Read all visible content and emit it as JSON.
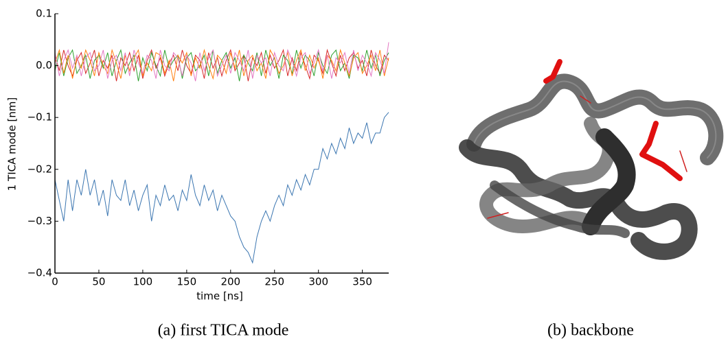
{
  "chart_data": {
    "type": "line",
    "xlabel": "time [ns]",
    "ylabel": "1 TICA mode [nm]",
    "xlim": [
      0,
      380
    ],
    "ylim": [
      -0.4,
      0.1
    ],
    "xticks": [
      0,
      50,
      100,
      150,
      200,
      250,
      300,
      350
    ],
    "yticks": [
      {
        "value": -0.4,
        "label": "−0.4"
      },
      {
        "value": -0.3,
        "label": "−0.3"
      },
      {
        "value": -0.2,
        "label": "−0.2"
      },
      {
        "value": -0.1,
        "label": "−0.1"
      },
      {
        "value": 0,
        "label": "0.0"
      },
      0.1
    ],
    "x": [
      0,
      5,
      10,
      15,
      20,
      25,
      30,
      35,
      40,
      45,
      50,
      55,
      60,
      65,
      70,
      75,
      80,
      85,
      90,
      95,
      100,
      105,
      110,
      115,
      120,
      125,
      130,
      135,
      140,
      145,
      150,
      155,
      160,
      165,
      170,
      175,
      180,
      185,
      190,
      195,
      200,
      205,
      210,
      215,
      220,
      225,
      230,
      235,
      240,
      245,
      250,
      255,
      260,
      265,
      270,
      275,
      280,
      285,
      290,
      295,
      300,
      305,
      310,
      315,
      320,
      325,
      330,
      335,
      340,
      345,
      350,
      355,
      360,
      365,
      370,
      375,
      380
    ],
    "series": [
      {
        "color": "#d62728",
        "values": [
          0.02,
          -0.01,
          0.03,
          0.0,
          -0.02,
          0.01,
          0.025,
          -0.015,
          0.005,
          0.03,
          -0.02,
          0.01,
          -0.005,
          0.02,
          -0.03,
          0.015,
          0.0,
          0.025,
          -0.01,
          0.02,
          -0.025,
          0.01,
          0.03,
          -0.005,
          0.015,
          -0.02,
          0.005,
          0.02,
          -0.01,
          0.03,
          0.0,
          -0.015,
          0.02,
          0.01,
          -0.025,
          0.025,
          -0.005,
          0.015,
          -0.02,
          0.01,
          0.03,
          -0.01,
          0.005,
          0.02,
          -0.03,
          0.015,
          0.0,
          0.025,
          -0.015,
          0.02,
          -0.005,
          0.01,
          0.03,
          -0.02,
          0.015,
          -0.01,
          0.025,
          0.0,
          -0.025,
          0.02,
          0.01,
          -0.015,
          0.03,
          0.005,
          -0.02,
          0.02,
          -0.01,
          0.015,
          0.025,
          -0.005,
          0.01,
          -0.02,
          0.03,
          0.0,
          -0.015,
          0.02,
          0.01
        ]
      },
      {
        "color": "#2ca02c",
        "values": [
          -0.01,
          0.025,
          -0.02,
          0.015,
          0.03,
          -0.015,
          0.0,
          0.02,
          -0.025,
          0.01,
          0.02,
          -0.005,
          0.025,
          -0.02,
          0.01,
          0.03,
          -0.015,
          0.005,
          0.02,
          -0.03,
          0.015,
          -0.01,
          0.025,
          0.0,
          -0.02,
          0.03,
          -0.005,
          0.01,
          0.02,
          -0.025,
          0.015,
          0.025,
          -0.01,
          0.0,
          0.02,
          -0.02,
          0.03,
          -0.015,
          0.01,
          0.025,
          -0.005,
          0.015,
          -0.03,
          0.02,
          0.005,
          -0.01,
          0.025,
          -0.02,
          0.03,
          0.0,
          0.015,
          -0.025,
          0.02,
          0.01,
          -0.015,
          0.03,
          -0.005,
          0.02,
          0.01,
          -0.02,
          0.025,
          0.0,
          -0.015,
          0.02,
          0.03,
          -0.01,
          0.005,
          -0.025,
          0.02,
          0.015,
          -0.01,
          0.03,
          -0.005,
          0.02,
          -0.02,
          0.01,
          0.025
        ]
      },
      {
        "color": "#ff7f0e",
        "values": [
          0.005,
          0.03,
          -0.015,
          0.02,
          -0.025,
          0.015,
          -0.005,
          0.03,
          0.01,
          -0.02,
          0.025,
          0.0,
          -0.015,
          0.03,
          0.005,
          -0.025,
          0.02,
          -0.01,
          0.015,
          0.03,
          -0.02,
          0.005,
          -0.01,
          0.025,
          0.02,
          -0.015,
          0.01,
          -0.03,
          0.02,
          0.005,
          0.025,
          -0.02,
          0.015,
          -0.005,
          0.03,
          0.0,
          -0.025,
          0.02,
          0.01,
          -0.015,
          0.025,
          -0.005,
          0.03,
          -0.02,
          0.01,
          0.02,
          -0.01,
          0.005,
          -0.025,
          0.03,
          0.015,
          -0.015,
          0.0,
          0.025,
          -0.02,
          0.01,
          0.03,
          -0.01,
          0.02,
          -0.005,
          0.015,
          -0.025,
          0.02,
          0.01,
          -0.01,
          0.03,
          0.005,
          -0.02,
          0.015,
          0.025,
          -0.015,
          0.0,
          0.02,
          -0.01,
          0.03,
          -0.02,
          0.015
        ]
      },
      {
        "color": "#e377c2",
        "values": [
          0.025,
          -0.02,
          0.01,
          0.03,
          -0.005,
          0.02,
          -0.02,
          0.015,
          0.025,
          -0.01,
          0.0,
          0.03,
          -0.025,
          0.01,
          0.02,
          -0.01,
          0.025,
          -0.02,
          0.03,
          0.005,
          -0.015,
          0.02,
          0.01,
          -0.025,
          0.03,
          0.0,
          -0.01,
          0.025,
          0.015,
          -0.02,
          0.02,
          0.005,
          -0.03,
          0.025,
          -0.01,
          0.015,
          0.03,
          -0.02,
          0.0,
          0.02,
          -0.015,
          0.025,
          0.01,
          -0.01,
          0.03,
          -0.025,
          0.02,
          0.005,
          0.015,
          -0.02,
          0.025,
          0.0,
          -0.01,
          0.03,
          0.01,
          -0.02,
          0.015,
          0.025,
          -0.015,
          0.005,
          0.03,
          -0.01,
          0.02,
          -0.025,
          0.015,
          0.005,
          0.025,
          -0.015,
          0.03,
          -0.01,
          0.02,
          0.005,
          -0.02,
          0.025,
          0.01,
          -0.015,
          0.045
        ]
      },
      {
        "color": "#3a75b0",
        "values": [
          -0.22,
          -0.26,
          -0.3,
          -0.22,
          -0.28,
          -0.22,
          -0.25,
          -0.2,
          -0.25,
          -0.22,
          -0.27,
          -0.24,
          -0.29,
          -0.22,
          -0.25,
          -0.26,
          -0.22,
          -0.27,
          -0.24,
          -0.28,
          -0.25,
          -0.23,
          -0.3,
          -0.25,
          -0.27,
          -0.23,
          -0.26,
          -0.25,
          -0.28,
          -0.24,
          -0.26,
          -0.21,
          -0.25,
          -0.27,
          -0.23,
          -0.26,
          -0.24,
          -0.28,
          -0.25,
          -0.27,
          -0.29,
          -0.3,
          -0.33,
          -0.35,
          -0.36,
          -0.38,
          -0.33,
          -0.3,
          -0.28,
          -0.3,
          -0.27,
          -0.25,
          -0.27,
          -0.23,
          -0.25,
          -0.22,
          -0.24,
          -0.21,
          -0.23,
          -0.2,
          -0.2,
          -0.16,
          -0.18,
          -0.15,
          -0.17,
          -0.14,
          -0.16,
          -0.12,
          -0.15,
          -0.13,
          -0.14,
          -0.11,
          -0.15,
          -0.13,
          -0.13,
          -0.1,
          -0.09
        ]
      }
    ]
  },
  "captions": [
    "(a) first TICA mode",
    "(b) backbone"
  ]
}
